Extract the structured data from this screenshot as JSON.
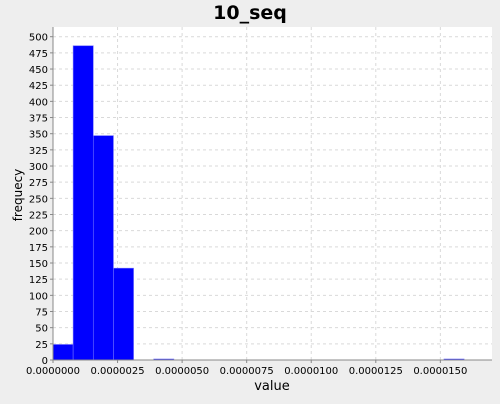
{
  "chart_data": {
    "type": "bar",
    "title": "10_seq",
    "xlabel": "value",
    "ylabel": "frequecy",
    "xlim": [
      0.0,
      1.7e-05
    ],
    "ylim": [
      0,
      515
    ],
    "x_ticks": [
      0.0,
      2.5e-06,
      5e-06,
      7.5e-06,
      1e-05,
      1.25e-05,
      1.5e-05
    ],
    "x_tick_labels": [
      "0.0000000",
      "0.0000025",
      "0.0000050",
      "0.0000075",
      "0.0000100",
      "0.0000125",
      "0.0000150"
    ],
    "y_ticks": [
      0,
      25,
      50,
      75,
      100,
      125,
      150,
      175,
      200,
      225,
      250,
      275,
      300,
      325,
      350,
      375,
      400,
      425,
      450,
      475,
      500
    ],
    "y_tick_labels": [
      "0",
      "25",
      "50",
      "75",
      "100",
      "125",
      "150",
      "175",
      "200",
      "225",
      "250",
      "275",
      "300",
      "325",
      "350",
      "375",
      "400",
      "425",
      "450",
      "475",
      "500"
    ],
    "bins": [
      {
        "x0": 0.0,
        "x1": 7.8e-07,
        "value": 24
      },
      {
        "x0": 7.8e-07,
        "x1": 1.56e-06,
        "value": 486
      },
      {
        "x0": 1.56e-06,
        "x1": 2.34e-06,
        "value": 347
      },
      {
        "x0": 2.34e-06,
        "x1": 3.12e-06,
        "value": 142
      },
      {
        "x0": 3.9e-06,
        "x1": 4.68e-06,
        "value": 1
      },
      {
        "x0": 1.514e-05,
        "x1": 1.592e-05,
        "value": 1
      }
    ],
    "grid": true,
    "legend": "none",
    "colors": {
      "bar": "#0000ff",
      "plot_background": "#ffffff",
      "background": "#eeeeee",
      "grid": "#d9d9d9",
      "axis": "#888888",
      "text": "#000000"
    }
  }
}
